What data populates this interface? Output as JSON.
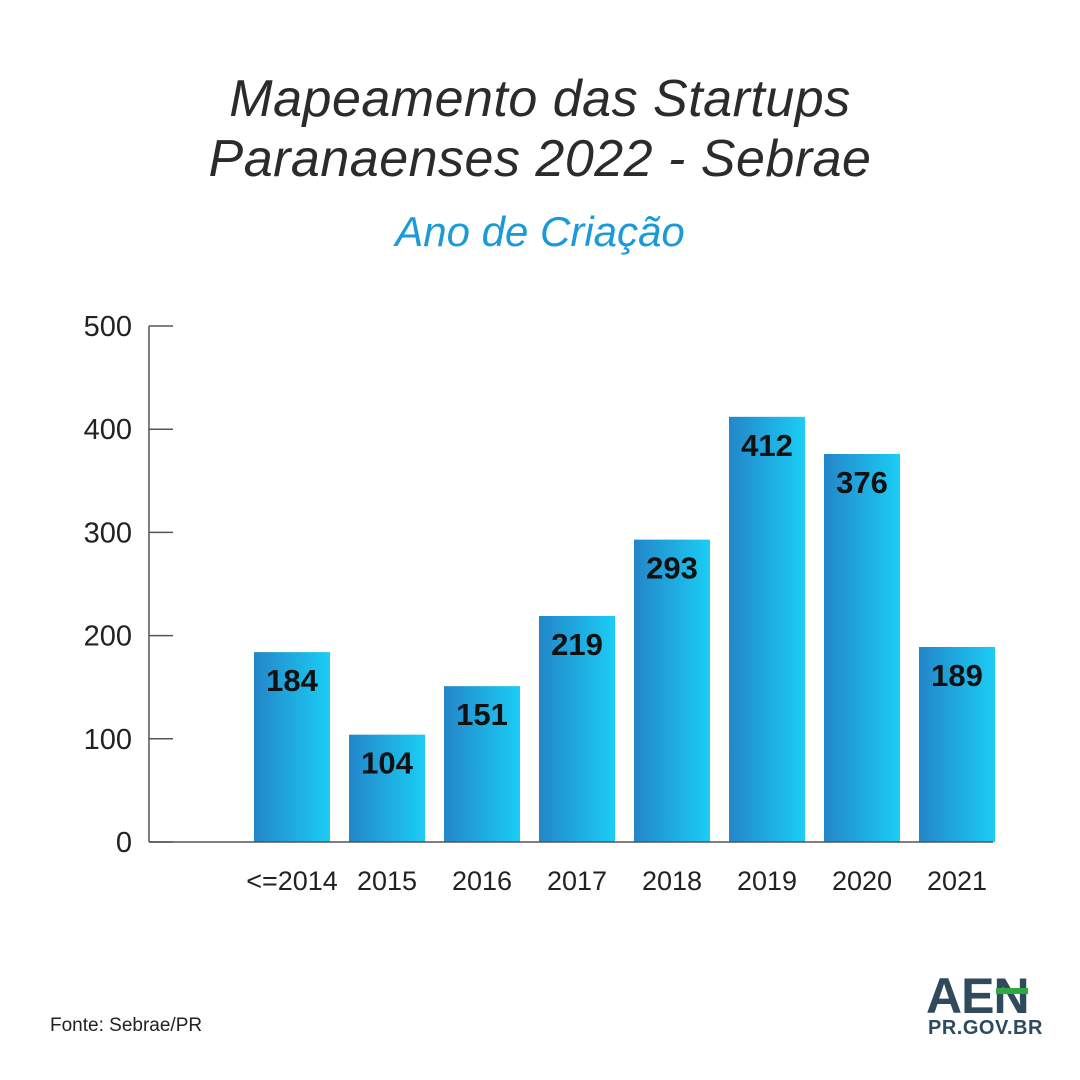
{
  "header": {
    "title_line1": "Mapeamento das Startups",
    "title_line2": "Paranaenses 2022 - Sebrae",
    "subtitle": "Ano de Criação"
  },
  "footer": {
    "source": "Fonte: Sebrae/PR",
    "logo_main": "AEN",
    "logo_sub": "PR.GOV.BR"
  },
  "colors": {
    "bar_gradient_start": "#2386c8",
    "bar_gradient_end": "#1bcdf5",
    "title": "#2b2b2b",
    "subtitle": "#1a9ad9",
    "axis": "#555555",
    "logo": "#2e4a5c",
    "logo_accent": "#2eaa3e"
  },
  "chart_data": {
    "type": "bar",
    "title": "Mapeamento das Startups Paranaenses 2022 - Sebrae",
    "subtitle": "Ano de Criação",
    "categories": [
      "<=2014",
      "2015",
      "2016",
      "2017",
      "2018",
      "2019",
      "2020",
      "2021"
    ],
    "values": [
      184,
      104,
      151,
      219,
      293,
      412,
      376,
      189
    ],
    "ylim": [
      0,
      500
    ],
    "yticks": [
      0,
      100,
      200,
      300,
      400,
      500
    ],
    "xlabel": "",
    "ylabel": "",
    "grid": false,
    "legend": "none",
    "data_labels": "inside-top"
  }
}
